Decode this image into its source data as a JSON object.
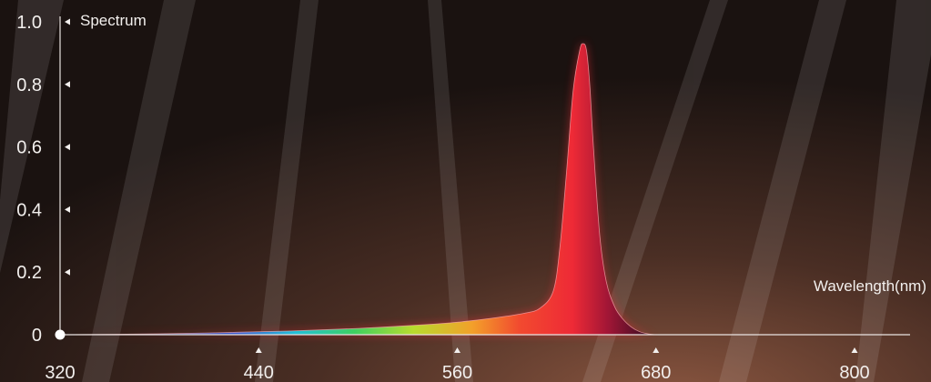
{
  "chart_data": {
    "type": "area",
    "title": "",
    "ylabel": "Spectrum",
    "xlabel": "Wavelength(nm)",
    "xlim": [
      320,
      800
    ],
    "ylim": [
      0,
      1.0
    ],
    "xticks": [
      320,
      440,
      560,
      680,
      800
    ],
    "xtick_labels": [
      "320",
      "440",
      "560",
      "680",
      "800"
    ],
    "yticks": [
      0,
      0.2,
      0.4,
      0.6,
      0.8,
      1.0
    ],
    "ytick_labels": [
      "0",
      "0.2",
      "0.4",
      "0.6",
      "0.8",
      "1.0"
    ],
    "grid": false,
    "series": [
      {
        "x": [
          320,
          380,
          420,
          460,
          500,
          540,
          560,
          580,
          600,
          610,
          618,
          622,
          626,
          630,
          634,
          636,
          638,
          640,
          642,
          646,
          650,
          655,
          660,
          665,
          670,
          675,
          680
        ],
        "y": [
          0.0,
          0.003,
          0.007,
          0.012,
          0.02,
          0.032,
          0.04,
          0.052,
          0.068,
          0.085,
          0.14,
          0.28,
          0.52,
          0.78,
          0.91,
          0.93,
          0.91,
          0.8,
          0.62,
          0.32,
          0.17,
          0.09,
          0.05,
          0.025,
          0.01,
          0.003,
          0.0
        ]
      }
    ]
  },
  "colors": {
    "axis": "#e9e4e1",
    "text": "#f2efed",
    "peak": "#ee2a36",
    "background": "#1c1411"
  }
}
